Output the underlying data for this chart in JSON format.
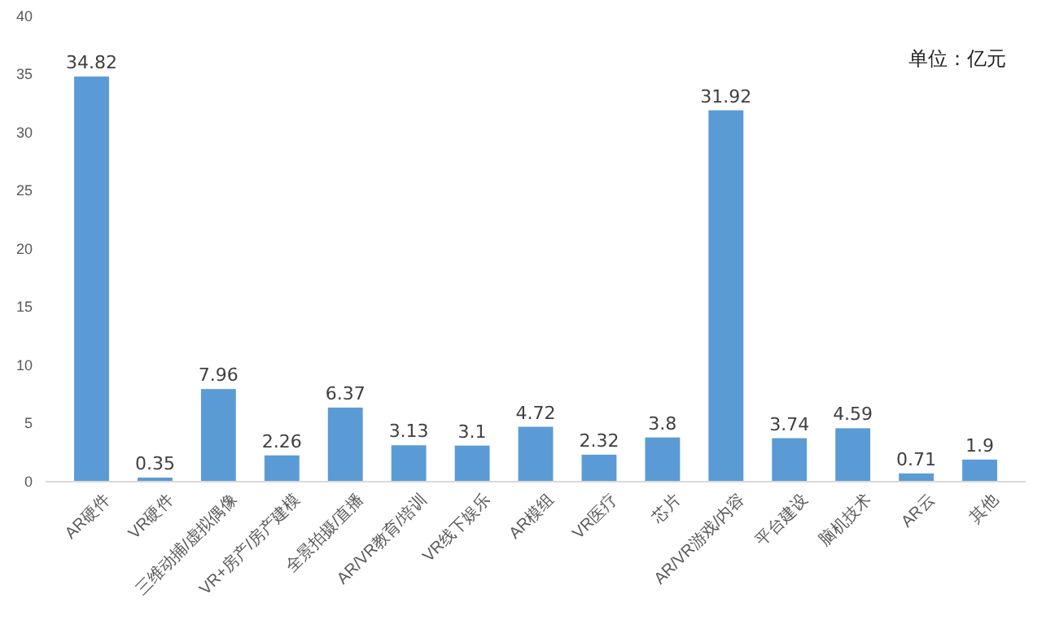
{
  "chart_data": {
    "type": "bar",
    "categories": [
      "AR硬件",
      "VR硬件",
      "三维动捕/虚拟偶像",
      "VR+房产/房产建模",
      "全景拍摄/直播",
      "AR/VR教育/培训",
      "VR线下娱乐",
      "AR模组",
      "VR医疗",
      "芯片",
      "AR/VR游戏/内容",
      "平台建设",
      "脑机技术",
      "AR云",
      "其他"
    ],
    "values": [
      34.82,
      0.35,
      7.96,
      2.26,
      6.37,
      3.13,
      3.1,
      4.72,
      2.32,
      3.8,
      31.92,
      3.74,
      4.59,
      0.71,
      1.9
    ],
    "color": "#5b9bd5",
    "ylim": [
      0,
      40
    ],
    "yticks": [
      0,
      5,
      10,
      15,
      20,
      25,
      30,
      35,
      40
    ],
    "data_labels": true,
    "annotations": [
      "单位：亿元"
    ]
  }
}
